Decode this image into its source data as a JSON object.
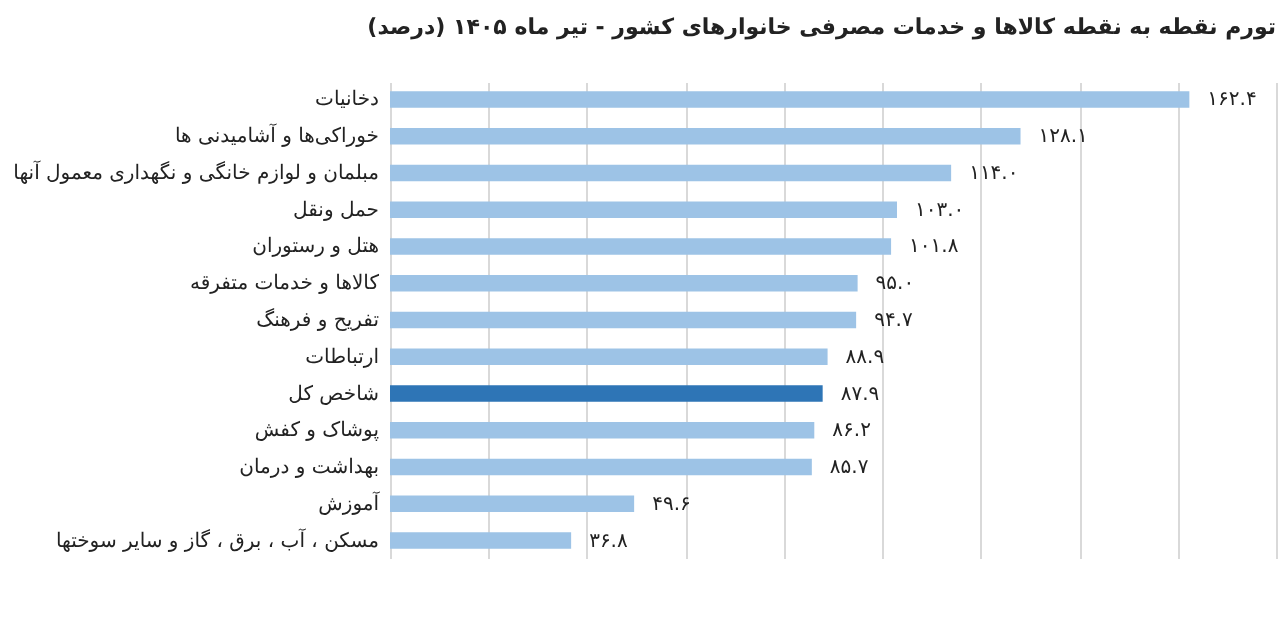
{
  "chart_data": {
    "type": "bar",
    "orientation": "horizontal",
    "title": "تورم نقطه به نقطه کالاها و خدمات مصرفی خانوارهای کشور - تیر ماه ۱۴۰۵ (درصد)",
    "categories": [
      "دخانیات",
      "خوراکی‌ها و آشامیدنی ها",
      "مبلمان و لوازم خانگی و نگهداری معمول آنها",
      "حمل ونقل",
      "هتل و رستوران",
      "کالاها و خدمات متفرقه",
      "تفریح و فرهنگ",
      "ارتباطات",
      "شاخص کل",
      "پوشاک و کفش",
      "بهداشت و درمان",
      "آموزش",
      "مسکن ، آب ، برق ، گاز و سایر سوختها"
    ],
    "values": [
      162.4,
      128.1,
      114.0,
      103.0,
      101.8,
      95.0,
      94.7,
      88.9,
      87.9,
      86.2,
      85.7,
      49.6,
      36.8
    ],
    "value_labels": [
      "۱۶۲.۴",
      "۱۲۸.۱",
      "۱۱۴.۰",
      "۱۰۳.۰",
      "۱۰۱.۸",
      "۹۵.۰",
      "۹۴.۷",
      "۸۸.۹",
      "۸۷.۹",
      "۸۶.۲",
      "۸۵.۷",
      "۴۹.۶",
      "۳۶.۸"
    ],
    "colors": [
      "#9dc3e6",
      "#9dc3e6",
      "#9dc3e6",
      "#9dc3e6",
      "#9dc3e6",
      "#9dc3e6",
      "#9dc3e6",
      "#9dc3e6",
      "#2e75b6",
      "#9dc3e6",
      "#9dc3e6",
      "#9dc3e6",
      "#9dc3e6"
    ],
    "xlim": [
      0,
      180
    ],
    "xticks": [
      {
        "value": 0,
        "label": null
      },
      {
        "value": 20,
        "label": null
      },
      {
        "value": 40,
        "label": null
      },
      {
        "value": 60,
        "label": null
      },
      {
        "value": 80,
        "label": null
      },
      {
        "value": 100,
        "label": null
      },
      {
        "value": 120,
        "label": null
      },
      {
        "value": 140,
        "label": null
      },
      {
        "value": 160,
        "label": null
      },
      {
        "value": 180,
        "label": null
      }
    ],
    "grid": "x",
    "tick_labels": "y"
  }
}
